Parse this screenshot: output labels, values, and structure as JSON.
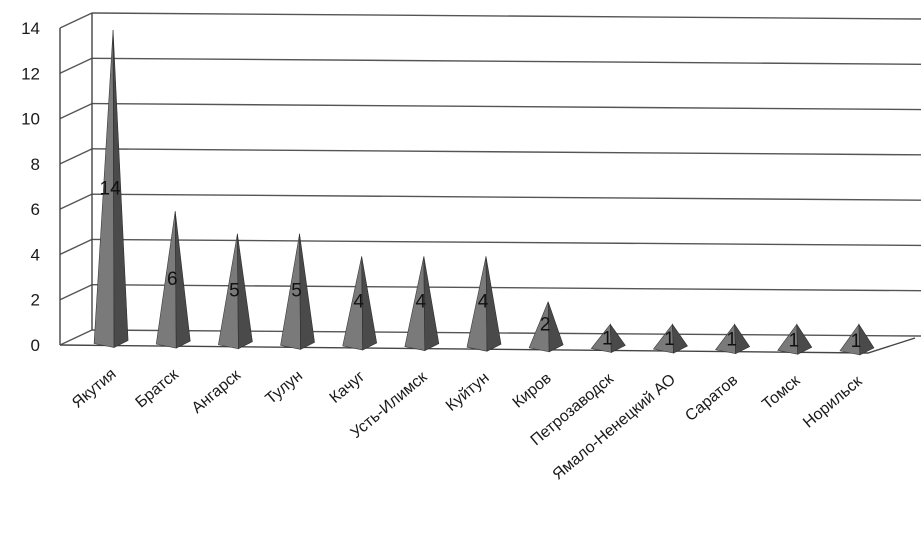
{
  "chart_data": {
    "type": "bar",
    "style": "3d-pyramid",
    "categories": [
      "Якутия",
      "Братск",
      "Ангарск",
      "Тулун",
      "Качуг",
      "Усть-Илимск",
      "Куйтун",
      "Киров",
      "Петрозаводск",
      "Ямало-Ненецкий АО",
      "Саратов",
      "Томск",
      "Норильск"
    ],
    "values": [
      14,
      6,
      5,
      5,
      4,
      4,
      4,
      2,
      1,
      1,
      1,
      1,
      1
    ],
    "data_labels": [
      "14",
      "6",
      "5",
      "5",
      "4",
      "4",
      "4",
      "2",
      "1",
      "1",
      "1",
      "1",
      "1"
    ],
    "y_ticks": [
      "0",
      "2",
      "4",
      "6",
      "8",
      "10",
      "12",
      "14"
    ],
    "ylim": [
      0,
      14
    ],
    "grid": true,
    "legend": "none",
    "colors": {
      "pyramid_front": "#7a7a7a",
      "pyramid_side": "#4a4a4a",
      "grid": "#555555"
    }
  }
}
